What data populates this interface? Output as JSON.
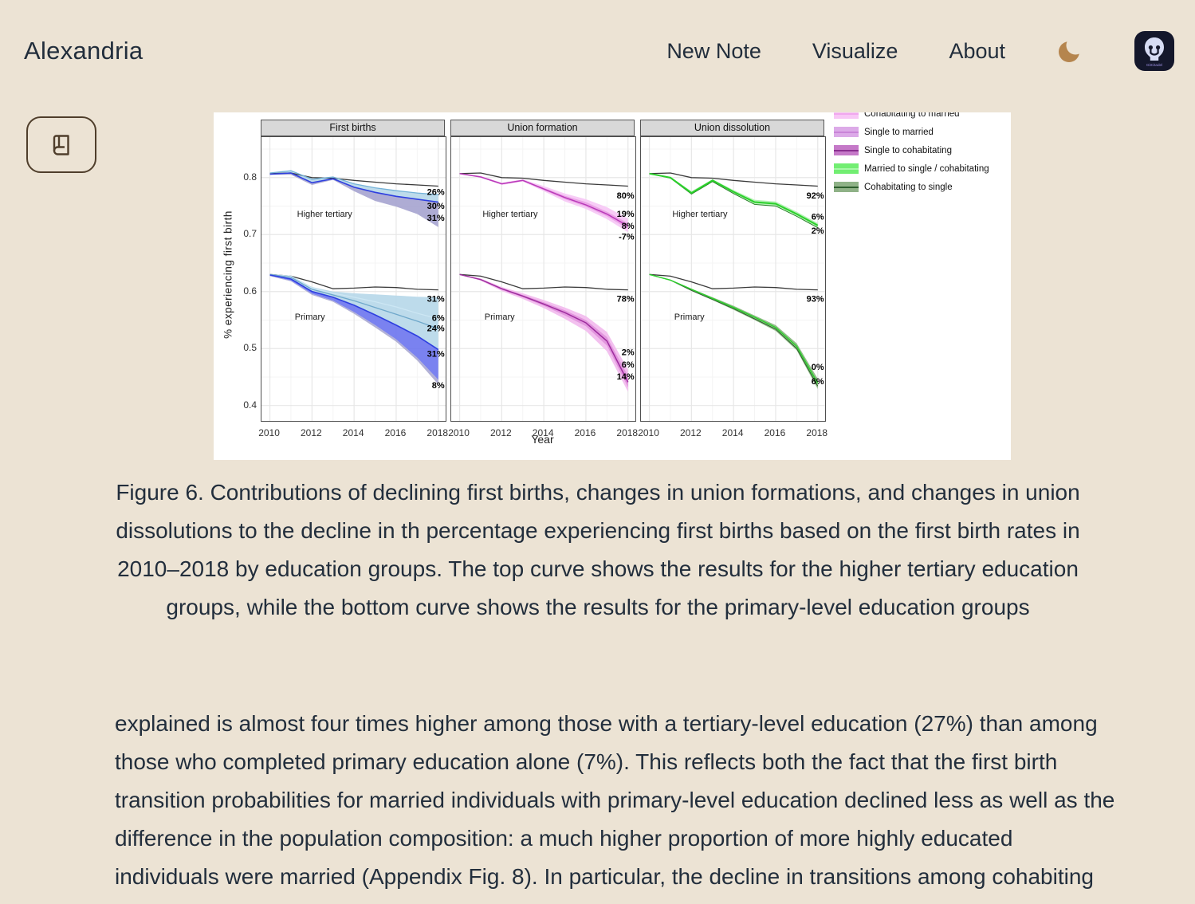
{
  "header": {
    "brand": "Alexandria",
    "nav": [
      "New Note",
      "Visualize",
      "About"
    ],
    "theme_icon": "moon-icon",
    "app_icon_label": "GitCitadel",
    "moon_color": "#b5854e"
  },
  "reader_button": {
    "icon": "book-icon"
  },
  "figure": {
    "caption": "Figure 6. Contributions of declining first births, changes in union formations, and changes in union dissolutions to the decline in th percentage experiencing first births based on the first birth rates in 2010–2018 by education groups. The top curve shows the results for the higher tertiary education groups, while the bottom curve shows the results for the primary-level education groups"
  },
  "body_text": {
    "paragraph": "explained is almost four times higher among those with a tertiary-level education (27%) than among those who completed primary education alone (7%). This reflects both the fact that the first birth transition probabilities for married individuals with primary-level education declined less as well as the difference in the population composition: a much higher proportion of more highly educated individuals were married (Appendix Fig. 8). In",
    "clipped_line": "particular, the decline in transitions among cohabiting and single individuals accounts for"
  },
  "chart_data": {
    "type": "line",
    "x": [
      2010,
      2011,
      2012,
      2013,
      2014,
      2015,
      2016,
      2017,
      2018
    ],
    "xlabel": "Year",
    "ylabel": "% experiencing first birth",
    "xticks": [
      2010,
      2012,
      2014,
      2016,
      2018
    ],
    "yticks": [
      0.4,
      0.5,
      0.6,
      0.7,
      0.8
    ],
    "xlim": [
      2009.6,
      2018.35
    ],
    "ylim": [
      0.373,
      0.871
    ],
    "grid": true,
    "legend_position": "top-right",
    "legend": [
      {
        "label": "Cohabitating to married",
        "swatch": "#f8c7f6",
        "line": "#f0a8ee",
        "clipped": true
      },
      {
        "label": "Single to married",
        "swatch": "#dcaae8",
        "line": "#c985d8"
      },
      {
        "label": "Single to cohabitating",
        "swatch": "#c579c8",
        "line": "#8a2f90"
      },
      {
        "label": "Married to single / cohabitating",
        "swatch": "#72ee72",
        "line": "#a8f8a8"
      },
      {
        "label": "Cohabitating to single",
        "swatch": "#8fb287",
        "line": "#2d5f2d"
      }
    ],
    "panels": [
      {
        "title": "First births",
        "groups": [
          {
            "name": "Higher tertiary",
            "name_xy": [
              2012.6,
              0.737
            ],
            "counterfactual": [
              0.807,
              0.808,
              0.8,
              0.799,
              0.795,
              0.792,
              0.789,
              0.787,
              0.785
            ],
            "bands": [
              {
                "fill": "#b9d9ea",
                "opacity": 0.95,
                "top": [
                  0.808,
                  0.812,
                  0.797,
                  0.801,
                  0.789,
                  0.782,
                  0.777,
                  0.773,
                  0.77
                ],
                "bottom": [
                  0.806,
                  0.808,
                  0.791,
                  0.798,
                  0.783,
                  0.774,
                  0.767,
                  0.762,
                  0.757
                ]
              },
              {
                "fill": "#a5a3cf",
                "opacity": 0.9,
                "top": [
                  0.806,
                  0.808,
                  0.791,
                  0.798,
                  0.783,
                  0.774,
                  0.767,
                  0.762,
                  0.757
                ],
                "bottom": [
                  0.805,
                  0.805,
                  0.787,
                  0.796,
                  0.776,
                  0.759,
                  0.749,
                  0.736,
                  0.713
                ]
              }
            ],
            "lines": [
              {
                "color": "#74b2d8",
                "width": 1.3,
                "values": [
                  0.808,
                  0.812,
                  0.797,
                  0.801,
                  0.789,
                  0.782,
                  0.777,
                  0.773,
                  0.77
                ]
              },
              {
                "color": "#2e3fe0",
                "width": 1.6,
                "values": [
                  0.806,
                  0.808,
                  0.791,
                  0.798,
                  0.783,
                  0.774,
                  0.767,
                  0.762,
                  0.757
                ]
              }
            ],
            "labels": [
              {
                "x": 2018.3,
                "y": 0.775,
                "text": "26%"
              },
              {
                "x": 2018.3,
                "y": 0.751,
                "text": "30%"
              },
              {
                "x": 2018.3,
                "y": 0.73,
                "text": "31%"
              }
            ]
          },
          {
            "name": "Primary",
            "name_xy": [
              2011.9,
              0.556
            ],
            "counterfactual": [
              0.63,
              0.627,
              0.617,
              0.605,
              0.606,
              0.608,
              0.607,
              0.604,
              0.603
            ],
            "bands": [
              {
                "fill": "#b9d9ea",
                "opacity": 0.95,
                "top": [
                  0.63,
                  0.628,
                  0.608,
                  0.6,
                  0.597,
                  0.595,
                  0.593,
                  0.591,
                  0.59
                ],
                "bottom": [
                  0.629,
                  0.622,
                  0.6,
                  0.59,
                  0.576,
                  0.559,
                  0.541,
                  0.522,
                  0.498
                ]
              },
              {
                "fill": "#6b74ee",
                "opacity": 0.9,
                "top": [
                  0.629,
                  0.622,
                  0.6,
                  0.59,
                  0.576,
                  0.559,
                  0.541,
                  0.522,
                  0.498
                ],
                "bottom": [
                  0.628,
                  0.619,
                  0.596,
                  0.584,
                  0.564,
                  0.541,
                  0.516,
                  0.484,
                  0.445
                ]
              },
              {
                "fill": "#a5a3cf",
                "opacity": 0.85,
                "top": [
                  0.628,
                  0.619,
                  0.596,
                  0.584,
                  0.564,
                  0.541,
                  0.516,
                  0.484,
                  0.445
                ],
                "bottom": [
                  0.627,
                  0.618,
                  0.594,
                  0.582,
                  0.561,
                  0.537,
                  0.512,
                  0.479,
                  0.437
                ]
              }
            ],
            "lines": [
              {
                "color": "#cde7f4",
                "width": 1.2,
                "values": [
                  0.63,
                  0.627,
                  0.606,
                  0.597,
                  0.59,
                  0.582,
                  0.573,
                  0.562,
                  0.552
                ]
              },
              {
                "color": "#6fa8cb",
                "width": 1.3,
                "values": [
                  0.63,
                  0.625,
                  0.604,
                  0.594,
                  0.584,
                  0.572,
                  0.56,
                  0.548,
                  0.535
                ]
              },
              {
                "color": "#2e3fe0",
                "width": 1.6,
                "values": [
                  0.629,
                  0.622,
                  0.6,
                  0.59,
                  0.576,
                  0.559,
                  0.541,
                  0.522,
                  0.498
                ]
              }
            ],
            "labels": [
              {
                "x": 2018.3,
                "y": 0.588,
                "text": "31%"
              },
              {
                "x": 2018.3,
                "y": 0.554,
                "text": "6%"
              },
              {
                "x": 2018.3,
                "y": 0.536,
                "text": "24%"
              },
              {
                "x": 2018.3,
                "y": 0.491,
                "text": "31%"
              },
              {
                "x": 2018.3,
                "y": 0.436,
                "text": "8%"
              }
            ]
          }
        ]
      },
      {
        "title": "Union formation",
        "groups": [
          {
            "name": "Higher tertiary",
            "name_xy": [
              2012.4,
              0.737
            ],
            "counterfactual": [
              0.807,
              0.808,
              0.8,
              0.799,
              0.795,
              0.792,
              0.789,
              0.787,
              0.785
            ],
            "bands": [
              {
                "fill": "#f7c9f5",
                "opacity": 0.95,
                "top": [
                  0.807,
                  0.803,
                  0.791,
                  0.797,
                  0.785,
                  0.772,
                  0.762,
                  0.748,
                  0.728
                ],
                "bottom": [
                  0.807,
                  0.8,
                  0.787,
                  0.793,
                  0.776,
                  0.758,
                  0.745,
                  0.727,
                  0.704
                ]
              },
              {
                "fill": "#eaa1e6",
                "opacity": 0.95,
                "top": [
                  0.807,
                  0.802,
                  0.79,
                  0.796,
                  0.782,
                  0.768,
                  0.757,
                  0.74,
                  0.72
                ],
                "bottom": [
                  0.807,
                  0.801,
                  0.788,
                  0.794,
                  0.778,
                  0.762,
                  0.749,
                  0.732,
                  0.71
                ]
              }
            ],
            "lines": [
              {
                "color": "#b93ab9",
                "width": 1.5,
                "values": [
                  0.807,
                  0.801,
                  0.789,
                  0.795,
                  0.78,
                  0.765,
                  0.752,
                  0.736,
                  0.715
                ]
              }
            ],
            "labels": [
              {
                "x": 2018.3,
                "y": 0.769,
                "text": "80%"
              },
              {
                "x": 2018.3,
                "y": 0.737,
                "text": "19%"
              },
              {
                "x": 2018.3,
                "y": 0.716,
                "text": "8%"
              },
              {
                "x": 2018.3,
                "y": 0.697,
                "text": "-7%"
              }
            ]
          },
          {
            "name": "Primary",
            "name_xy": [
              2011.9,
              0.556
            ],
            "counterfactual": [
              0.63,
              0.627,
              0.617,
              0.605,
              0.606,
              0.608,
              0.607,
              0.604,
              0.603
            ],
            "bands": [
              {
                "fill": "#f2bdee",
                "opacity": 0.95,
                "top": [
                  0.63,
                  0.623,
                  0.608,
                  0.597,
                  0.585,
                  0.572,
                  0.557,
                  0.529,
                  0.463
                ],
                "bottom": [
                  0.63,
                  0.619,
                  0.601,
                  0.587,
                  0.571,
                  0.552,
                  0.531,
                  0.495,
                  0.424
                ]
              },
              {
                "fill": "#e095dc",
                "opacity": 0.95,
                "top": [
                  0.63,
                  0.622,
                  0.606,
                  0.594,
                  0.581,
                  0.567,
                  0.55,
                  0.52,
                  0.452
                ],
                "bottom": [
                  0.63,
                  0.62,
                  0.603,
                  0.59,
                  0.575,
                  0.558,
                  0.539,
                  0.505,
                  0.432
                ]
              }
            ],
            "lines": [
              {
                "color": "#9e2d9e",
                "width": 1.5,
                "values": [
                  0.63,
                  0.621,
                  0.605,
                  0.592,
                  0.578,
                  0.563,
                  0.545,
                  0.513,
                  0.441
                ]
              }
            ],
            "labels": [
              {
                "x": 2018.3,
                "y": 0.588,
                "text": "78%"
              },
              {
                "x": 2018.3,
                "y": 0.494,
                "text": "2%"
              },
              {
                "x": 2018.3,
                "y": 0.472,
                "text": "6%"
              },
              {
                "x": 2018.3,
                "y": 0.451,
                "text": "14%"
              }
            ]
          }
        ]
      },
      {
        "title": "Union dissolution",
        "groups": [
          {
            "name": "Higher tertiary",
            "name_xy": [
              2012.4,
              0.737
            ],
            "counterfactual": [
              0.807,
              0.808,
              0.8,
              0.799,
              0.795,
              0.792,
              0.789,
              0.787,
              0.785
            ],
            "bands": [
              {
                "fill": "#aef0ae",
                "opacity": 0.9,
                "top": [
                  0.807,
                  0.801,
                  0.776,
                  0.797,
                  0.778,
                  0.761,
                  0.758,
                  0.74,
                  0.72
                ],
                "bottom": [
                  0.807,
                  0.799,
                  0.771,
                  0.793,
                  0.772,
                  0.753,
                  0.75,
                  0.732,
                  0.712
                ]
              }
            ],
            "lines": [
              {
                "color": "#207a20",
                "width": 0.9,
                "values": [
                  0.807,
                  0.799,
                  0.771,
                  0.793,
                  0.772,
                  0.753,
                  0.75,
                  0.732,
                  0.712
                ]
              },
              {
                "color": "#2bd12b",
                "width": 2.0,
                "values": [
                  0.807,
                  0.8,
                  0.773,
                  0.795,
                  0.775,
                  0.757,
                  0.754,
                  0.736,
                  0.716
                ]
              }
            ],
            "labels": [
              {
                "x": 2018.3,
                "y": 0.769,
                "text": "92%"
              },
              {
                "x": 2018.3,
                "y": 0.732,
                "text": "6%"
              },
              {
                "x": 2018.3,
                "y": 0.707,
                "text": "2%"
              }
            ]
          },
          {
            "name": "Primary",
            "name_xy": [
              2011.9,
              0.556
            ],
            "counterfactual": [
              0.63,
              0.627,
              0.617,
              0.605,
              0.606,
              0.608,
              0.607,
              0.604,
              0.603
            ],
            "bands": [
              {
                "fill": "#8cb983",
                "opacity": 0.95,
                "top": [
                  0.63,
                  0.621,
                  0.605,
                  0.59,
                  0.575,
                  0.558,
                  0.541,
                  0.509,
                  0.447
                ],
                "bottom": [
                  0.63,
                  0.619,
                  0.601,
                  0.585,
                  0.568,
                  0.55,
                  0.531,
                  0.497,
                  0.429
                ]
              }
            ],
            "lines": [
              {
                "color": "#2d5f2d",
                "width": 1.0,
                "values": [
                  0.63,
                  0.62,
                  0.602,
                  0.586,
                  0.57,
                  0.552,
                  0.534,
                  0.5,
                  0.434
                ]
              },
              {
                "color": "#2bd12b",
                "width": 1.4,
                "values": [
                  0.63,
                  0.62,
                  0.604,
                  0.588,
                  0.572,
                  0.555,
                  0.537,
                  0.504,
                  0.439
                ]
              }
            ],
            "labels": [
              {
                "x": 2018.3,
                "y": 0.588,
                "text": "93%"
              },
              {
                "x": 2018.3,
                "y": 0.468,
                "text": "0%"
              },
              {
                "x": 2018.3,
                "y": 0.443,
                "text": "6%"
              }
            ]
          }
        ]
      }
    ]
  }
}
